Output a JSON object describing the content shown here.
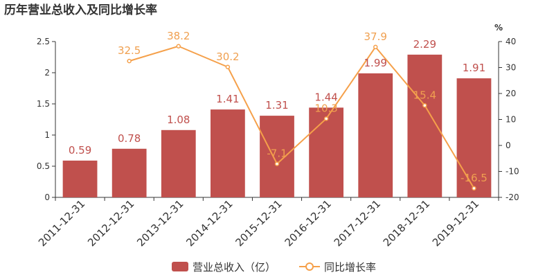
{
  "chart_data": {
    "type": "bar",
    "title": "历年营业总收入及同比增长率",
    "categories": [
      "2011-12-31",
      "2012-12-31",
      "2013-12-31",
      "2014-12-31",
      "2015-12-31",
      "2016-12-31",
      "2017-12-31",
      "2018-12-31",
      "2019-12-31"
    ],
    "series": [
      {
        "name": "营业总收入（亿）",
        "type": "bar",
        "axis": "left",
        "values": [
          0.59,
          0.78,
          1.08,
          1.41,
          1.31,
          1.44,
          1.99,
          2.29,
          1.91
        ],
        "labels": [
          "0.59",
          "0.78",
          "1.08",
          "1.41",
          "1.31",
          "1.44",
          "1.99",
          "2.29",
          "1.91"
        ],
        "color": "#c0504d"
      },
      {
        "name": "同比增长率",
        "type": "line",
        "axis": "right",
        "values": [
          null,
          32.5,
          38.2,
          30.2,
          -7.1,
          10.3,
          37.9,
          15.4,
          -16.5
        ],
        "labels": [
          "",
          "32.5",
          "38.2",
          "30.2",
          "-7.1",
          "10.3",
          "37.9",
          "15.4",
          "-16.5"
        ],
        "color": "#f5a04a"
      }
    ],
    "y_left": {
      "ylim": [
        0,
        2.5
      ],
      "ticks": [
        "0",
        "0.5",
        "1",
        "1.5",
        "2",
        "2.5"
      ]
    },
    "y_right": {
      "ylim": [
        -20,
        40
      ],
      "ticks": [
        "-20",
        "-10",
        "0",
        "10",
        "20",
        "30",
        "40"
      ],
      "unit": "%"
    },
    "grid": false,
    "legend": "bottom-center"
  }
}
